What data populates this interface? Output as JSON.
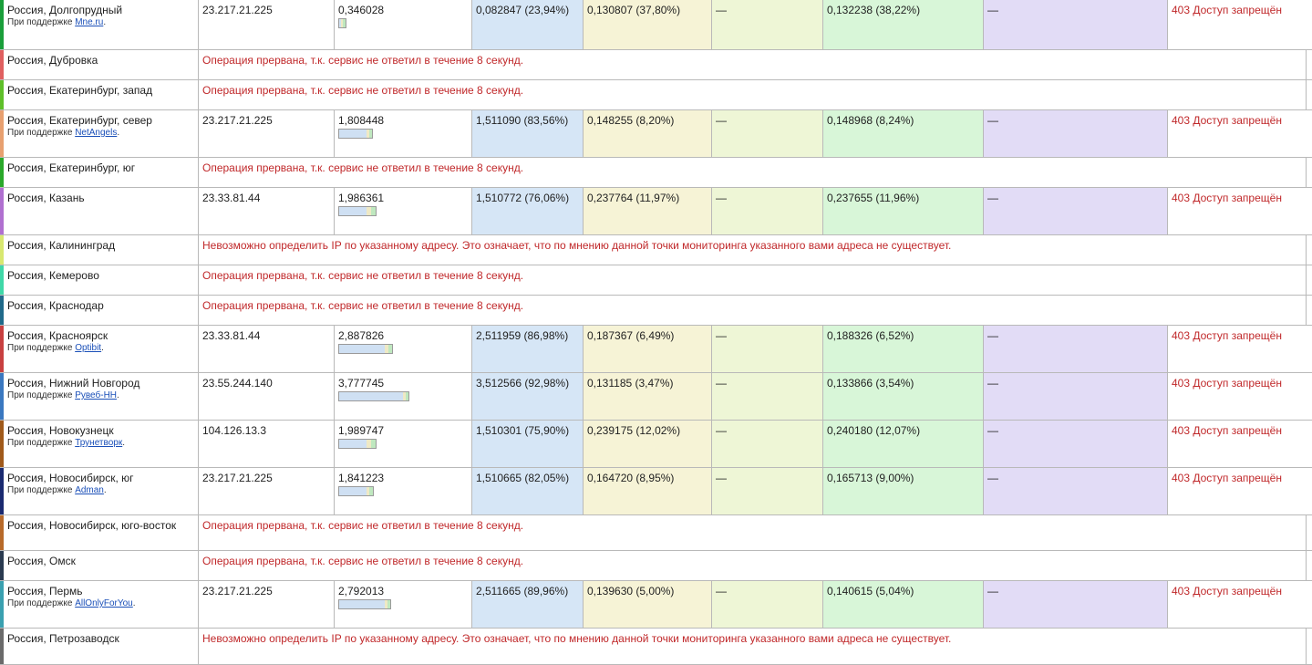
{
  "colors": {
    "error_text": "#c0282a",
    "connect_bg": "#d6e6f6",
    "wait_bg": "#f6f3d6",
    "dash_bg": "#eef6d6",
    "receive_bg": "#d8f6d8",
    "dash2_bg": "#e2dcf6"
  },
  "rows": [
    {
      "type": "data",
      "location": "Россия, Долгопрудный",
      "support_prefix": "При поддержке",
      "support_link": "Mne.ru",
      "support_suffix": ".",
      "stripe": "#1a9e3a",
      "ip": "23.217.21.225",
      "total": "0,346028",
      "total_value": 0.346028,
      "connect": "0,082847 (23,94%)",
      "connect_value": 0.082847,
      "wait": "0,130807 (37,80%)",
      "wait_value": 0.130807,
      "dash1": "—",
      "receive": "0,132238 (38,22%)",
      "receive_value": 0.132238,
      "dash2": "—",
      "status": "403 Доступ запрещён"
    },
    {
      "type": "msg",
      "location": "Россия, Дубровка",
      "stripe": "#e06060",
      "message": "Операция прервана, т.к. сервис не ответил в течение 8 секунд."
    },
    {
      "type": "msg",
      "location": "Россия, Екатеринбург, запад",
      "stripe": "#5fbf2a",
      "message": "Операция прервана, т.к. сервис не ответил в течение 8 секунд."
    },
    {
      "type": "data",
      "location": "Россия, Екатеринбург, север",
      "support_prefix": "При поддержке",
      "support_link": "NetAngels",
      "support_suffix": ".",
      "stripe": "#e8a070",
      "ip": "23.217.21.225",
      "total": "1,808448",
      "total_value": 1.808448,
      "connect": "1,511090 (83,56%)",
      "connect_value": 1.51109,
      "wait": "0,148255 (8,20%)",
      "wait_value": 0.148255,
      "dash1": "—",
      "receive": "0,148968 (8,24%)",
      "receive_value": 0.148968,
      "dash2": "—",
      "status": "403 Доступ запрещён"
    },
    {
      "type": "msg",
      "location": "Россия, Екатеринбург, юг",
      "stripe": "#2aa82a",
      "message": "Операция прервана, т.к. сервис не ответил в течение 8 секунд."
    },
    {
      "type": "data",
      "location": "Россия, Казань",
      "stripe": "#b070d0",
      "ip": "23.33.81.44",
      "total": "1,986361",
      "total_value": 1.986361,
      "connect": "1,510772 (76,06%)",
      "connect_value": 1.510772,
      "wait": "0,237764 (11,97%)",
      "wait_value": 0.237764,
      "dash1": "—",
      "receive": "0,237655 (11,96%)",
      "receive_value": 0.237655,
      "dash2": "—",
      "status": "403 Доступ запрещён"
    },
    {
      "type": "msg",
      "location": "Россия, Калининград",
      "stripe": "#d8e870",
      "message": "Невозможно определить IP по указанному адресу. Это означает, что по мнению данной точки мониторинга указанного вами адреса не существует."
    },
    {
      "type": "msg",
      "location": "Россия, Кемерово",
      "stripe": "#40d8a8",
      "message": "Операция прервана, т.к. сервис не ответил в течение 8 секунд."
    },
    {
      "type": "msg",
      "location": "Россия, Краснодар",
      "stripe": "#206a8a",
      "message": "Операция прервана, т.к. сервис не ответил в течение 8 секунд."
    },
    {
      "type": "data",
      "location": "Россия, Красноярск",
      "support_prefix": "При поддержке",
      "support_link": "Optibit",
      "support_suffix": ".",
      "stripe": "#c84040",
      "ip": "23.33.81.44",
      "total": "2,887826",
      "total_value": 2.887826,
      "connect": "2,511959 (86,98%)",
      "connect_value": 2.511959,
      "wait": "0,187367 (6,49%)",
      "wait_value": 0.187367,
      "dash1": "—",
      "receive": "0,188326 (6,52%)",
      "receive_value": 0.188326,
      "dash2": "—",
      "status": "403 Доступ запрещён"
    },
    {
      "type": "data",
      "location": "Россия, Нижний Новгород",
      "support_prefix": "При поддержке",
      "support_link": "Рувеб-НН",
      "support_suffix": ".",
      "stripe": "#3a78c0",
      "ip": "23.55.244.140",
      "total": "3,777745",
      "total_value": 3.777745,
      "connect": "3,512566 (92,98%)",
      "connect_value": 3.512566,
      "wait": "0,131185 (3,47%)",
      "wait_value": 0.131185,
      "dash1": "—",
      "receive": "0,133866 (3,54%)",
      "receive_value": 0.133866,
      "dash2": "—",
      "status": "403 Доступ запрещён"
    },
    {
      "type": "data",
      "location": "Россия, Новокузнецк",
      "support_prefix": "При поддержке",
      "support_link": "Трунетворк",
      "support_suffix": ".",
      "stripe": "#a05a1a",
      "ip": "104.126.13.3",
      "total": "1,989747",
      "total_value": 1.989747,
      "connect": "1,510301 (75,90%)",
      "connect_value": 1.510301,
      "wait": "0,239175 (12,02%)",
      "wait_value": 0.239175,
      "dash1": "—",
      "receive": "0,240180 (12,07%)",
      "receive_value": 0.24018,
      "dash2": "—",
      "status": "403 Доступ запрещён"
    },
    {
      "type": "data",
      "location": "Россия, Новосибирск, юг",
      "support_prefix": "При поддержке",
      "support_link": "Adman",
      "support_suffix": ".",
      "stripe": "#1a2a70",
      "ip": "23.217.21.225",
      "total": "1,841223",
      "total_value": 1.841223,
      "connect": "1,510665 (82,05%)",
      "connect_value": 1.510665,
      "wait": "0,164720 (8,95%)",
      "wait_value": 0.16472,
      "dash1": "—",
      "receive": "0,165713 (9,00%)",
      "receive_value": 0.165713,
      "dash2": "—",
      "status": "403 Доступ запрещён"
    },
    {
      "type": "msg",
      "location": "Россия, Новосибирск, юго-восток",
      "stripe": "#b86a2a",
      "message": "Операция прервана, т.к. сервис не ответил в течение 8 секунд."
    },
    {
      "type": "msg",
      "location": "Россия, Омск",
      "stripe": "#2a3a50",
      "message": "Операция прервана, т.к. сервис не ответил в течение 8 секунд."
    },
    {
      "type": "data",
      "location": "Россия, Пермь",
      "support_prefix": "При поддержке",
      "support_link": "AllOnlyForYou",
      "support_suffix": ".",
      "stripe": "#3aa0b0",
      "ip": "23.217.21.225",
      "total": "2,792013",
      "total_value": 2.792013,
      "connect": "2,511665 (89,96%)",
      "connect_value": 2.511665,
      "wait": "0,139630 (5,00%)",
      "wait_value": 0.13963,
      "dash1": "—",
      "receive": "0,140615 (5,04%)",
      "receive_value": 0.140615,
      "dash2": "—",
      "status": "403 Доступ запрещён"
    },
    {
      "type": "msg",
      "location": "Россия, Петрозаводск",
      "stripe": "#6a6a6a",
      "message": "Невозможно определить IP по указанному адресу. Это означает, что по мнению данной точки мониторинга указанного вами адреса не существует."
    }
  ]
}
